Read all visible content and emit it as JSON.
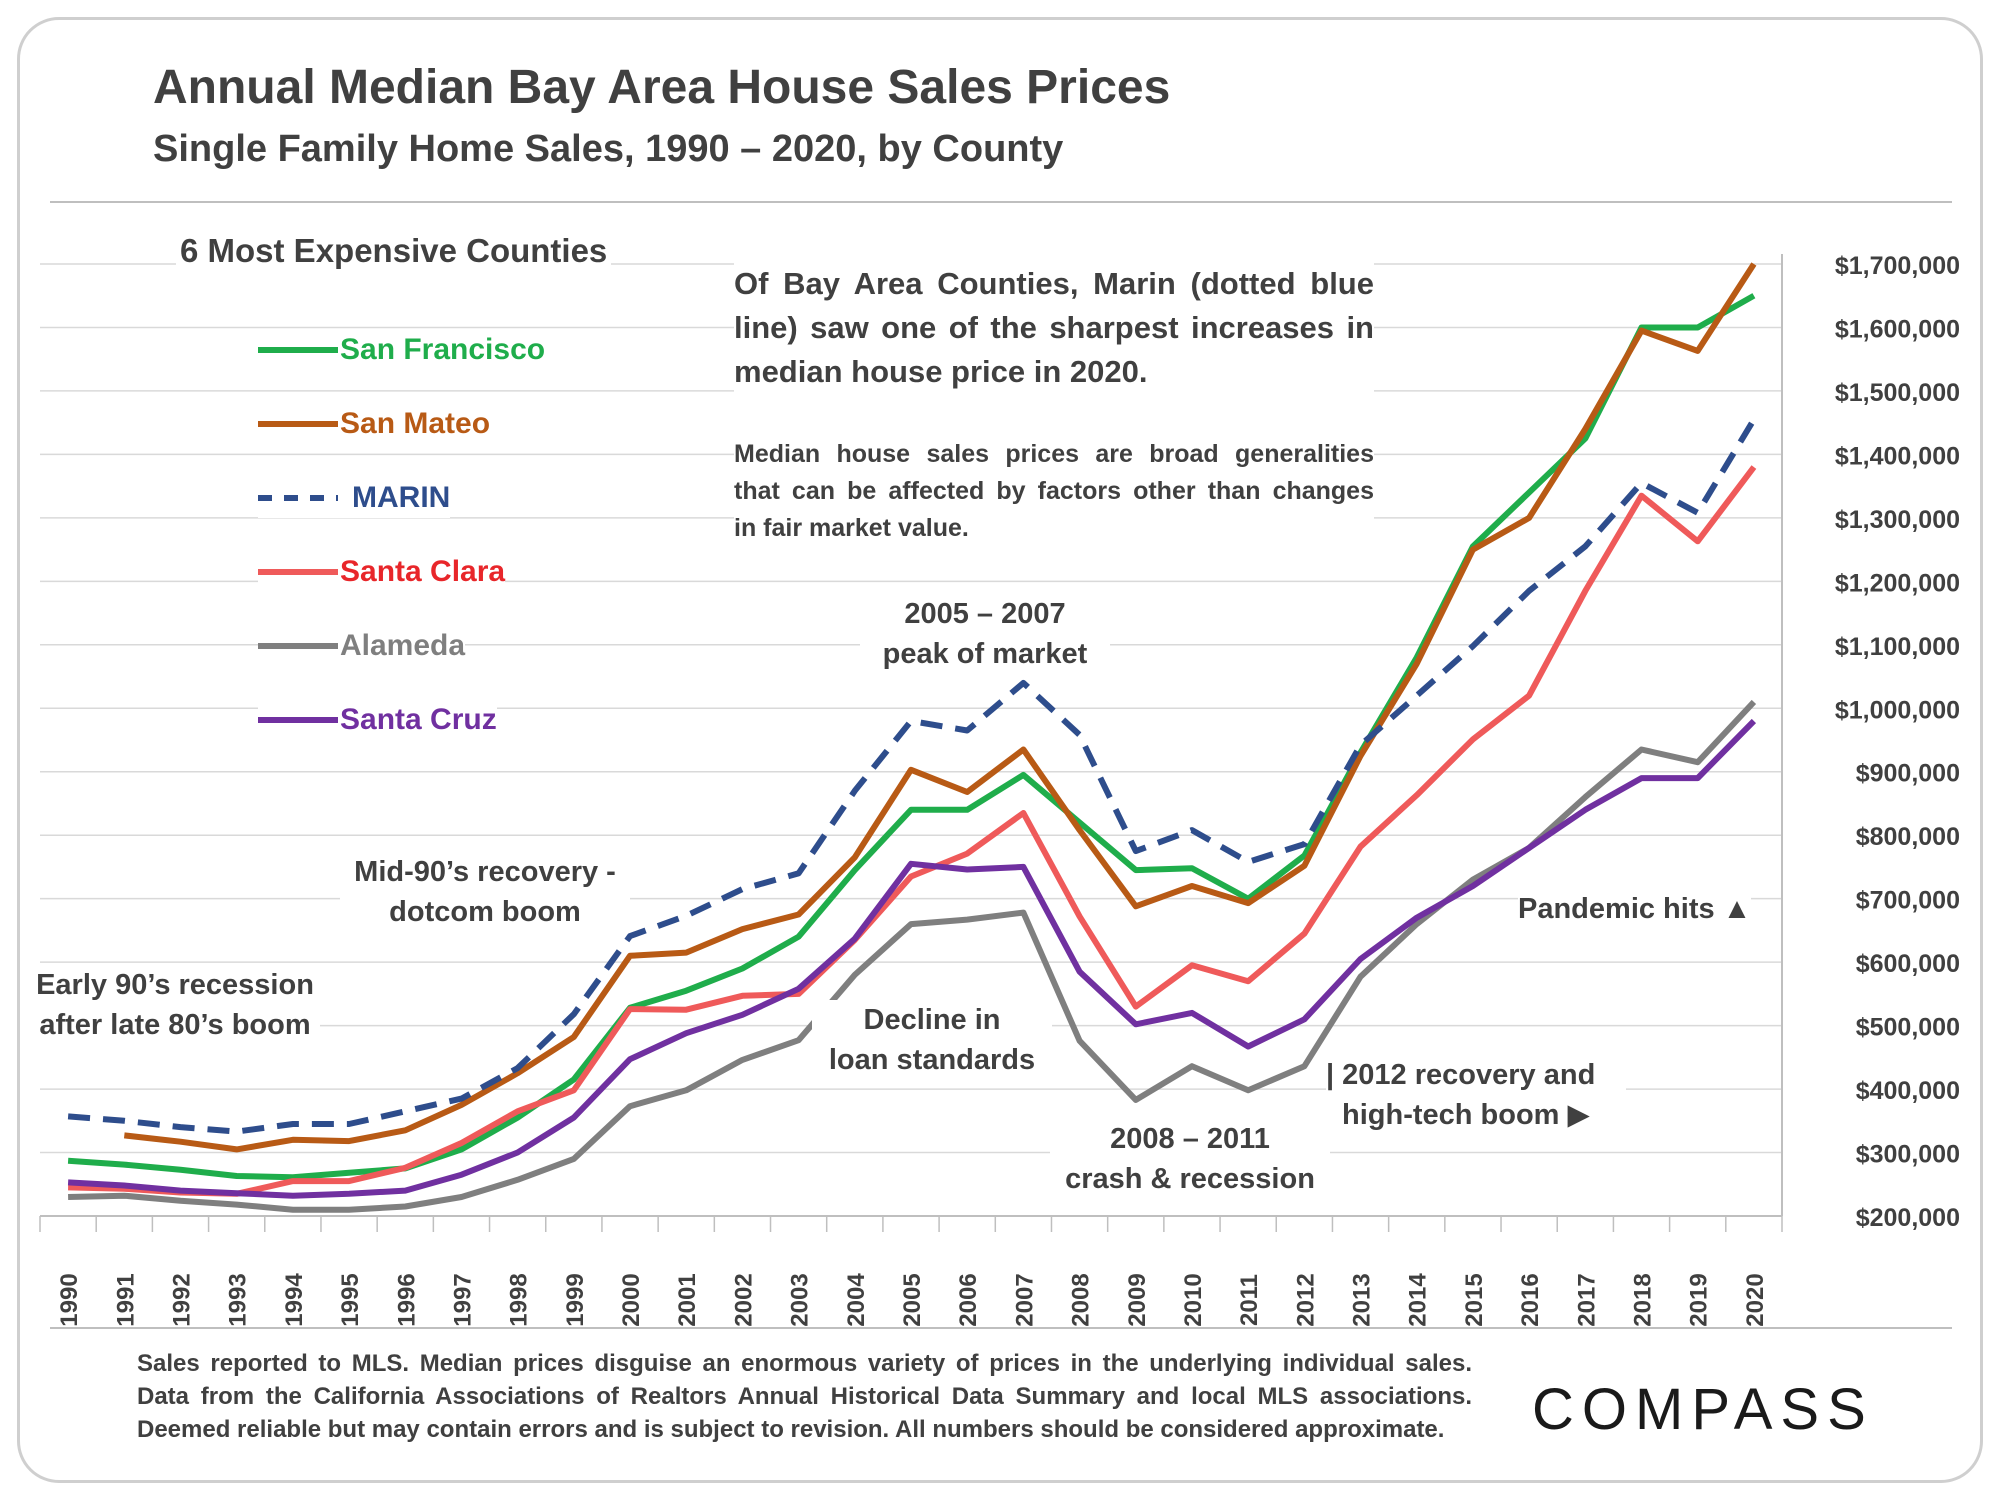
{
  "title": "Annual Median Bay Area House Sales Prices",
  "subtitle": "Single Family Home Sales, 1990 – 2020, by County",
  "legend_title": "6 Most Expensive Counties",
  "callout_main": [
    "Of Bay Area Counties, Marin (dotted blue",
    "line) saw one of the sharpest increases in",
    "median house price in 2020."
  ],
  "callout_note": [
    "Median house sales prices are broad generalities",
    "that can be affected by factors other than changes",
    "in fair market value."
  ],
  "annotations": {
    "early90s": [
      "Early 90’s recession",
      "after late 80’s boom"
    ],
    "mid90s": [
      "Mid-90’s recovery -",
      "dotcom boom"
    ],
    "peak": [
      "2005 – 2007",
      "peak of market"
    ],
    "decline": [
      "Decline in",
      "loan standards"
    ],
    "crash": [
      "2008 – 2011",
      "crash & recession"
    ],
    "recovery": [
      "| 2012 recovery and",
      "high-tech boom ▶"
    ],
    "pandemic": "Pandemic hits ▲"
  },
  "footnote": [
    "Sales reported to MLS. Median prices disguise an enormous variety of prices in the underlying individual sales.",
    "Data from the California Associations of Realtors Annual Historical Data Summary and local MLS associations.",
    "Deemed reliable but may contain errors and is subject to revision. All numbers should be considered approximate."
  ],
  "logo": "COMPASS",
  "chart_data": {
    "type": "line",
    "x": [
      1990,
      1991,
      1992,
      1993,
      1994,
      1995,
      1996,
      1997,
      1998,
      1999,
      2000,
      2001,
      2002,
      2003,
      2004,
      2005,
      2006,
      2007,
      2008,
      2009,
      2010,
      2011,
      2012,
      2013,
      2014,
      2015,
      2016,
      2017,
      2018,
      2019,
      2020
    ],
    "ylim": [
      200000,
      1700000
    ],
    "y_ticks": [
      "$200,000",
      "$300,000",
      "$400,000",
      "$500,000",
      "$600,000",
      "$700,000",
      "$800,000",
      "$900,000",
      "$1,000,000",
      "$1,100,000",
      "$1,200,000",
      "$1,300,000",
      "$1,400,000",
      "$1,500,000",
      "$1,600,000",
      "$1,700,000"
    ],
    "y_axis_side": "right",
    "grid": true,
    "legend_position": "top-left",
    "series": [
      {
        "name": "San Francisco",
        "color": "#1fad4b",
        "dash": "solid",
        "values": [
          287000,
          281000,
          273000,
          263000,
          261000,
          268000,
          275000,
          305000,
          355000,
          415000,
          528000,
          555000,
          590000,
          640000,
          745000,
          840000,
          840000,
          895000,
          820000,
          745000,
          748000,
          700000,
          768000,
          930000,
          1080000,
          1255000,
          1340000,
          1425000,
          1600000,
          1600000,
          1650000
        ]
      },
      {
        "name": "San Mateo",
        "color": "#b85a15",
        "dash": "solid",
        "values": [
          null,
          327000,
          317000,
          305000,
          320000,
          318000,
          335000,
          375000,
          425000,
          482000,
          610000,
          615000,
          652000,
          675000,
          765000,
          903000,
          868000,
          935000,
          808000,
          688000,
          720000,
          693000,
          752000,
          925000,
          1070000,
          1250000,
          1300000,
          1440000,
          1595000,
          1563000,
          1700000
        ]
      },
      {
        "name": "MARIN",
        "color": "#2e4d8c",
        "dash": "dashed",
        "values": [
          357000,
          350000,
          340000,
          333000,
          345000,
          345000,
          365000,
          385000,
          433000,
          518000,
          641000,
          673000,
          715000,
          740000,
          870000,
          980000,
          965000,
          1040000,
          958000,
          775000,
          808000,
          758000,
          786000,
          942000,
          1020000,
          1098000,
          1185000,
          1255000,
          1355000,
          1308000,
          1455000
        ]
      },
      {
        "name": "Santa Clara",
        "color": "#ef5a5a",
        "dash": "solid",
        "values": [
          245000,
          243000,
          237000,
          235000,
          255000,
          255000,
          276000,
          315000,
          365000,
          398000,
          526000,
          525000,
          547000,
          550000,
          635000,
          735000,
          771000,
          835000,
          672000,
          530000,
          595000,
          570000,
          645000,
          782000,
          863000,
          951000,
          1020000,
          1185000,
          1335000,
          1263000,
          1380000
        ]
      },
      {
        "name": "Alameda",
        "color": "#7f7f7f",
        "dash": "solid",
        "values": [
          230000,
          232000,
          224000,
          218000,
          210000,
          210000,
          215000,
          230000,
          257000,
          290000,
          373000,
          398000,
          446000,
          477000,
          580000,
          660000,
          667000,
          678000,
          476000,
          383000,
          436000,
          398000,
          436000,
          577000,
          660000,
          730000,
          780000,
          860000,
          935000,
          915000,
          1010000
        ]
      },
      {
        "name": "Santa Cruz",
        "color": "#7030a0",
        "dash": "solid",
        "values": [
          253000,
          248000,
          240000,
          236000,
          232000,
          235000,
          240000,
          265000,
          300000,
          355000,
          447000,
          488000,
          517000,
          558000,
          637000,
          755000,
          746000,
          750000,
          585000,
          502000,
          520000,
          467000,
          510000,
          605000,
          670000,
          720000,
          780000,
          840000,
          890000,
          890000,
          980000
        ]
      }
    ]
  }
}
